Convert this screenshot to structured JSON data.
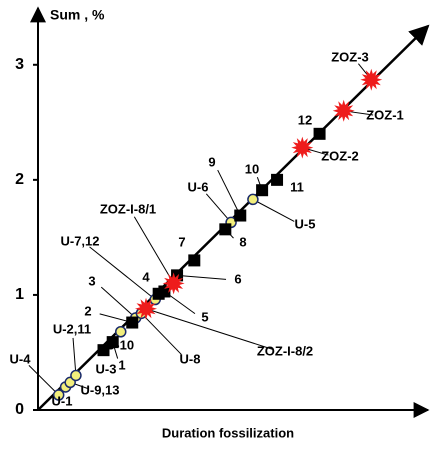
{
  "chart_data": {
    "type": "scatter",
    "y_label": "Sum , %",
    "x_label": "Duration fossilization",
    "xlim": [
      0,
      3.35
    ],
    "ylim": [
      0,
      3.45
    ],
    "yticks": [
      0,
      1,
      2,
      3
    ],
    "series": [
      {
        "marker": "circle",
        "color": "#f2ee7c",
        "x": [
          0.18,
          0.24,
          0.28,
          0.33,
          0.72,
          0.85,
          0.9,
          1.02,
          1.68,
          1.87
        ],
        "values": [
          0.13,
          0.2,
          0.24,
          0.3,
          0.68,
          0.8,
          0.84,
          0.96,
          1.63,
          1.83
        ],
        "labels": [
          "U-4",
          "U-1",
          "U-9,13",
          "U-2,11",
          "U-10",
          "3",
          "U-8",
          "U-7,12",
          "U-6",
          "U-5"
        ]
      },
      {
        "marker": "square",
        "color": "#000000",
        "x": [
          0.57,
          0.65,
          0.82,
          1.05,
          1.1,
          1.21,
          1.36,
          1.63,
          1.76,
          1.95,
          2.08,
          2.45
        ],
        "values": [
          0.52,
          0.59,
          0.76,
          1.01,
          1.03,
          1.17,
          1.3,
          1.57,
          1.69,
          1.91,
          2.0,
          2.4
        ],
        "labels": [
          "U-3",
          "1",
          "2",
          "4",
          "5",
          "6",
          "7",
          "8",
          "9",
          "10",
          "11",
          "12"
        ]
      },
      {
        "marker": "star",
        "color": "#ee1c1c",
        "x": [
          0.94,
          1.18,
          2.3,
          2.66,
          2.9
        ],
        "values": [
          0.88,
          1.1,
          2.28,
          2.6,
          2.87
        ],
        "labels": [
          "ZOZ-I-8/2",
          "ZOZ-I-8/1",
          "ZOZ-2",
          "ZOZ-1",
          "ZOZ-3"
        ]
      }
    ]
  }
}
